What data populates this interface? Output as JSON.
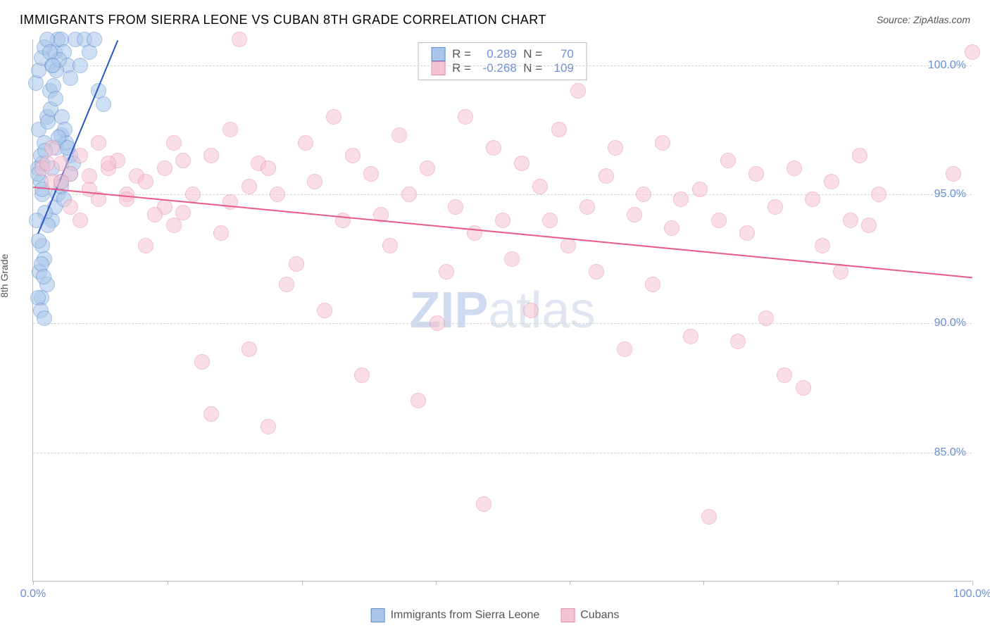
{
  "title": "IMMIGRANTS FROM SIERRA LEONE VS CUBAN 8TH GRADE CORRELATION CHART",
  "source": "Source: ZipAtlas.com",
  "ylabel": "8th Grade",
  "watermark": {
    "bold": "ZIP",
    "rest": "atlas"
  },
  "chart": {
    "type": "scatter",
    "background_color": "#ffffff",
    "grid_color": "#d5d5d5",
    "axis_color": "#bbbbbb",
    "label_color": "#6b8fd4",
    "xlim": [
      0,
      100
    ],
    "ylim": [
      80,
      101
    ],
    "xticks": [
      0,
      14.3,
      28.6,
      42.9,
      57.1,
      71.4,
      85.7,
      100
    ],
    "xtick_labels": [
      "0.0%",
      "",
      "",
      "",
      "",
      "",
      "",
      "100.0%"
    ],
    "yticks": [
      85,
      90,
      95,
      100
    ],
    "ytick_labels": [
      "85.0%",
      "90.0%",
      "95.0%",
      "100.0%"
    ],
    "point_radius": 11,
    "series": [
      {
        "name": "Immigrants from Sierra Leone",
        "color_fill": "#a9c6ea",
        "color_stroke": "#5b8bd0",
        "fill_opacity": 0.55,
        "r_label": "R =",
        "r_value": "0.289",
        "n_label": "N =",
        "n_value": "70",
        "trend": {
          "x1": 0.5,
          "y1": 93.5,
          "x2": 9,
          "y2": 101,
          "color": "#2a57c5"
        },
        "points": [
          [
            0.5,
            96
          ],
          [
            0.8,
            95.5
          ],
          [
            1,
            96.2
          ],
          [
            1.2,
            97
          ],
          [
            0.6,
            97.5
          ],
          [
            1.5,
            98
          ],
          [
            1.8,
            99
          ],
          [
            2,
            100
          ],
          [
            2.3,
            100.5
          ],
          [
            2.6,
            101
          ],
          [
            3,
            101
          ],
          [
            3.3,
            100.5
          ],
          [
            3.7,
            100
          ],
          [
            4,
            99.5
          ],
          [
            4.5,
            101
          ],
          [
            5,
            100
          ],
          [
            5.5,
            101
          ],
          [
            6,
            100.5
          ],
          [
            6.5,
            101
          ],
          [
            7,
            99
          ],
          [
            7.5,
            98.5
          ],
          [
            1,
            93
          ],
          [
            1.2,
            92.5
          ],
          [
            0.7,
            92
          ],
          [
            1.5,
            91.5
          ],
          [
            0.9,
            91
          ],
          [
            2,
            94
          ],
          [
            2.3,
            94.5
          ],
          [
            2.6,
            95
          ],
          [
            3,
            95.5
          ],
          [
            1,
            95
          ],
          [
            1.3,
            94.3
          ],
          [
            1.6,
            93.8
          ],
          [
            0.5,
            95.8
          ],
          [
            0.8,
            96.5
          ],
          [
            2,
            96
          ],
          [
            2.5,
            96.8
          ],
          [
            3,
            97.3
          ],
          [
            3.5,
            97
          ],
          [
            4,
            96.5
          ],
          [
            0.4,
            94
          ],
          [
            0.6,
            93.2
          ],
          [
            0.9,
            92.3
          ],
          [
            1.1,
            91.8
          ],
          [
            0.5,
            91
          ],
          [
            0.8,
            90.5
          ],
          [
            1,
            95.2
          ],
          [
            1.3,
            96.7
          ],
          [
            1.6,
            97.8
          ],
          [
            1.9,
            98.3
          ],
          [
            2.2,
            99.2
          ],
          [
            2.5,
            99.8
          ],
          [
            2.8,
            100.2
          ],
          [
            3.1,
            98
          ],
          [
            3.4,
            97.5
          ],
          [
            3.7,
            96.8
          ],
          [
            4,
            95.8
          ],
          [
            4.3,
            96.2
          ],
          [
            0.3,
            99.3
          ],
          [
            0.6,
            99.8
          ],
          [
            0.9,
            100.3
          ],
          [
            1.2,
            100.7
          ],
          [
            1.5,
            101
          ],
          [
            1.8,
            100.5
          ],
          [
            2.1,
            100
          ],
          [
            2.4,
            98.7
          ],
          [
            2.7,
            97.2
          ],
          [
            3,
            95.3
          ],
          [
            3.3,
            94.8
          ],
          [
            1.2,
            90.2
          ]
        ]
      },
      {
        "name": "Cubans",
        "color_fill": "#f5c4d2",
        "color_stroke": "#e88aa8",
        "fill_opacity": 0.55,
        "r_label": "R =",
        "r_value": "-0.268",
        "n_label": "N =",
        "n_value": "109",
        "trend": {
          "x1": 0,
          "y1": 95.3,
          "x2": 100,
          "y2": 91.8,
          "color": "#e85a8c"
        },
        "points": [
          [
            1,
            96
          ],
          [
            2,
            95.5
          ],
          [
            3,
            96.2
          ],
          [
            4,
            95.8
          ],
          [
            5,
            96.5
          ],
          [
            6,
            95.2
          ],
          [
            7,
            94.8
          ],
          [
            8,
            96
          ],
          [
            10,
            95
          ],
          [
            12,
            93
          ],
          [
            14,
            94.5
          ],
          [
            15,
            97
          ],
          [
            16,
            96.3
          ],
          [
            18,
            88.5
          ],
          [
            19,
            86.5
          ],
          [
            20,
            93.5
          ],
          [
            21,
            97.5
          ],
          [
            22,
            101
          ],
          [
            23,
            89
          ],
          [
            24,
            96.2
          ],
          [
            25,
            86
          ],
          [
            26,
            95
          ],
          [
            27,
            91.5
          ],
          [
            28,
            92.3
          ],
          [
            29,
            97
          ],
          [
            30,
            95.5
          ],
          [
            31,
            90.5
          ],
          [
            32,
            98
          ],
          [
            33,
            94
          ],
          [
            34,
            96.5
          ],
          [
            35,
            88
          ],
          [
            36,
            95.8
          ],
          [
            37,
            94.2
          ],
          [
            38,
            93
          ],
          [
            39,
            97.3
          ],
          [
            40,
            95
          ],
          [
            41,
            87
          ],
          [
            42,
            96
          ],
          [
            43,
            90
          ],
          [
            44,
            92
          ],
          [
            45,
            94.5
          ],
          [
            46,
            98
          ],
          [
            47,
            93.5
          ],
          [
            48,
            83
          ],
          [
            49,
            96.8
          ],
          [
            50,
            94
          ],
          [
            51,
            92.5
          ],
          [
            52,
            96.2
          ],
          [
            53,
            90.5
          ],
          [
            54,
            95.3
          ],
          [
            55,
            94
          ],
          [
            56,
            97.5
          ],
          [
            57,
            93
          ],
          [
            58,
            99
          ],
          [
            59,
            94.5
          ],
          [
            60,
            92
          ],
          [
            61,
            95.7
          ],
          [
            62,
            96.8
          ],
          [
            63,
            89
          ],
          [
            64,
            94.2
          ],
          [
            65,
            95
          ],
          [
            66,
            91.5
          ],
          [
            67,
            97
          ],
          [
            68,
            93.7
          ],
          [
            69,
            94.8
          ],
          [
            70,
            89.5
          ],
          [
            71,
            95.2
          ],
          [
            72,
            82.5
          ],
          [
            73,
            94
          ],
          [
            74,
            96.3
          ],
          [
            75,
            89.3
          ],
          [
            76,
            93.5
          ],
          [
            77,
            95.8
          ],
          [
            78,
            90.2
          ],
          [
            79,
            94.5
          ],
          [
            80,
            88
          ],
          [
            81,
            96
          ],
          [
            82,
            87.5
          ],
          [
            83,
            94.8
          ],
          [
            84,
            93
          ],
          [
            85,
            95.5
          ],
          [
            86,
            92
          ],
          [
            87,
            94
          ],
          [
            88,
            96.5
          ],
          [
            89,
            93.8
          ],
          [
            90,
            95
          ],
          [
            3,
            95.5
          ],
          [
            5,
            94
          ],
          [
            7,
            97
          ],
          [
            9,
            96.3
          ],
          [
            11,
            95.7
          ],
          [
            13,
            94.2
          ],
          [
            17,
            95
          ],
          [
            15,
            93.8
          ],
          [
            19,
            96.5
          ],
          [
            21,
            94.7
          ],
          [
            23,
            95.3
          ],
          [
            25,
            96
          ],
          [
            2,
            96.8
          ],
          [
            4,
            94.5
          ],
          [
            6,
            95.7
          ],
          [
            8,
            96.2
          ],
          [
            10,
            94.8
          ],
          [
            12,
            95.5
          ],
          [
            14,
            96
          ],
          [
            16,
            94.3
          ],
          [
            100,
            100.5
          ],
          [
            98,
            95.8
          ],
          [
            1.5,
            96.2
          ]
        ]
      }
    ]
  },
  "legend_bottom": [
    {
      "label": "Immigrants from Sierra Leone",
      "fill": "#a9c6ea",
      "stroke": "#5b8bd0"
    },
    {
      "label": "Cubans",
      "fill": "#f5c4d2",
      "stroke": "#e88aa8"
    }
  ]
}
